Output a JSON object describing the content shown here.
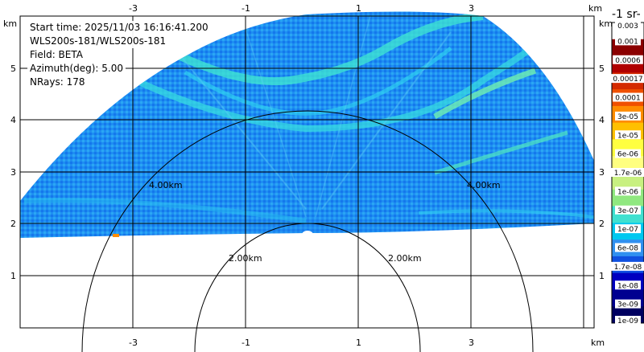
{
  "info": {
    "start_time": "Start time: 2025/11/03 16:16:41.200",
    "instrument": "WLS200s-181/WLS200s-181",
    "field": "Field: BETA",
    "azimuth": "Azimuth(deg): 5.00",
    "nrays": "NRays: 178"
  },
  "axes": {
    "unit": "km",
    "x_ticks": [
      "-3",
      "-1",
      "1",
      "3"
    ],
    "y_ticks": [
      "1",
      "2",
      "3",
      "4",
      "5"
    ],
    "ring_labels": [
      "2.00km",
      "4.00km"
    ]
  },
  "colorbar": {
    "title": "-1 sr-",
    "top_label": "0.003",
    "labels": [
      "0.001",
      "0.0006",
      "0.00017",
      "0.0001",
      "3e-05",
      "1e-05",
      "6e-06",
      "1.7e-06",
      "1e-06",
      "3e-07",
      "1e-07",
      "6e-08",
      "1.7e-08",
      "1e-08",
      "3e-09",
      "1e-09"
    ],
    "colors": [
      "#ffffff",
      "#8b0000",
      "#b00000",
      "#d42a00",
      "#f05000",
      "#ff8c00",
      "#ffc000",
      "#ffff40",
      "#ffff80",
      "#c8f080",
      "#90e880",
      "#40e0d0",
      "#00c8f0",
      "#3090f0",
      "#1050e0",
      "#0000c0",
      "#000090",
      "#000060"
    ]
  },
  "colors": {
    "background_field": "#1a8cf0",
    "field_light": "#20c8f0",
    "streak": "#40f0c0",
    "grid": "#000000"
  }
}
